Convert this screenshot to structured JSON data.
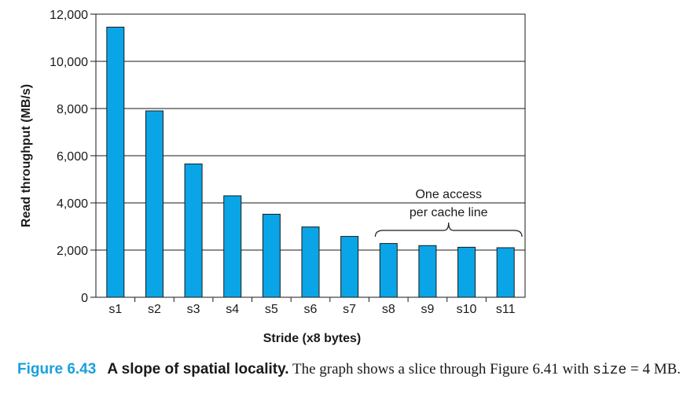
{
  "chart_data": {
    "type": "bar",
    "categories": [
      "s1",
      "s2",
      "s3",
      "s4",
      "s5",
      "s6",
      "s7",
      "s8",
      "s9",
      "s10",
      "s11"
    ],
    "values": [
      11450,
      7900,
      5650,
      4300,
      3520,
      2980,
      2580,
      2280,
      2190,
      2120,
      2100
    ],
    "xlabel": "Stride (x8 bytes)",
    "ylabel": "Read throughput (MB/s)",
    "ylim": [
      0,
      12000
    ],
    "yticks": [
      0,
      2000,
      4000,
      6000,
      8000,
      10000,
      12000
    ],
    "ytick_labels": [
      "0",
      "2,000",
      "4,000",
      "6,000",
      "8,000",
      "10,000",
      "12,000"
    ],
    "grid": true,
    "bar_color": "#0aa5e6",
    "annotation": {
      "lines": [
        "One access",
        "per cache line"
      ],
      "spans": [
        "s8",
        "s11"
      ]
    }
  },
  "caption": {
    "number": "Figure 6.43",
    "title": "A slope of spatial locality.",
    "text1": " The graph shows a slice through Figure 6.41 with ",
    "code": "size",
    "text2": " = 4 MB."
  }
}
